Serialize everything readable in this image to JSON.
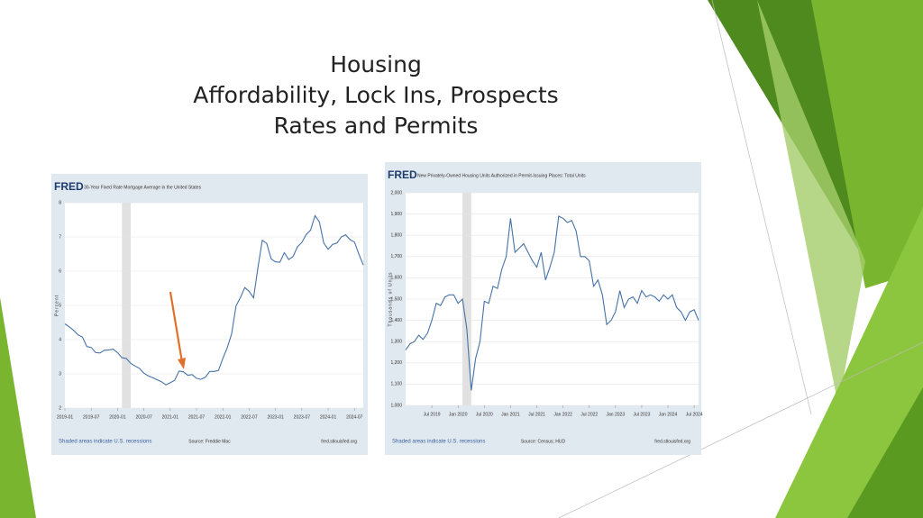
{
  "slide": {
    "title": [
      "Housing",
      "Affordability, Lock Ins, Prospects",
      "Rates and Permits"
    ]
  },
  "chart_data": [
    {
      "type": "line",
      "logo": "FRED",
      "title": "30-Year Fixed Rate Mortgage Average in the United States",
      "y_label": "Percent",
      "x": [
        "2019-01",
        "2019-02",
        "2019-03",
        "2019-04",
        "2019-05",
        "2019-06",
        "2019-07",
        "2019-08",
        "2019-09",
        "2019-10",
        "2019-11",
        "2019-12",
        "2020-01",
        "2020-02",
        "2020-03",
        "2020-04",
        "2020-05",
        "2020-06",
        "2020-07",
        "2020-08",
        "2020-09",
        "2020-10",
        "2020-11",
        "2020-12",
        "2021-01",
        "2021-02",
        "2021-03",
        "2021-04",
        "2021-05",
        "2021-06",
        "2021-07",
        "2021-08",
        "2021-09",
        "2021-10",
        "2021-11",
        "2021-12",
        "2022-01",
        "2022-02",
        "2022-03",
        "2022-04",
        "2022-05",
        "2022-06",
        "2022-07",
        "2022-08",
        "2022-09",
        "2022-10",
        "2022-11",
        "2022-12",
        "2023-01",
        "2023-02",
        "2023-03",
        "2023-04",
        "2023-05",
        "2023-06",
        "2023-07",
        "2023-08",
        "2023-09",
        "2023-10",
        "2023-11",
        "2023-12",
        "2024-01",
        "2024-02",
        "2024-03",
        "2024-04",
        "2024-05",
        "2024-06",
        "2024-07",
        "2024-08",
        "2024-09"
      ],
      "series": [
        {
          "color": "#4572a7",
          "values": [
            4.46,
            4.37,
            4.27,
            4.14,
            4.07,
            3.8,
            3.77,
            3.62,
            3.61,
            3.69,
            3.7,
            3.72,
            3.62,
            3.47,
            3.45,
            3.31,
            3.23,
            3.16,
            3.02,
            2.94,
            2.89,
            2.83,
            2.77,
            2.68,
            2.74,
            2.81,
            3.08,
            3.06,
            2.96,
            2.98,
            2.87,
            2.84,
            2.9,
            3.07,
            3.07,
            3.1,
            3.45,
            3.76,
            4.17,
            4.98,
            5.23,
            5.52,
            5.41,
            5.22,
            6.11,
            6.9,
            6.81,
            6.36,
            6.27,
            6.26,
            6.54,
            6.34,
            6.43,
            6.71,
            6.84,
            7.07,
            7.2,
            7.62,
            7.44,
            6.82,
            6.64,
            6.78,
            6.82,
            7.0,
            7.06,
            6.92,
            6.85,
            6.5,
            6.18
          ]
        }
      ],
      "ylim": [
        2,
        8
      ],
      "yticks": [
        2,
        3,
        4,
        5,
        6,
        7,
        8
      ],
      "xticks": [
        "2019-01",
        "2019-07",
        "2020-01",
        "2020-07",
        "2021-01",
        "2021-07",
        "2022-01",
        "2022-07",
        "2023-01",
        "2023-07",
        "2024-01",
        "2024-07"
      ],
      "recession": [
        "2020-02",
        "2020-04"
      ],
      "grid": true,
      "footer": {
        "note": "Shaded areas indicate U.S. recessions",
        "source": "Source: Freddie Mac",
        "site": "fred.stlouisfed.org"
      }
    },
    {
      "type": "line",
      "logo": "FRED",
      "title": "New Privately-Owned Housing Units Authorized in Permit-Issuing Places: Total Units",
      "y_label": "Thousands of Units",
      "x": [
        "Jan 2019",
        "Feb 2019",
        "Mar 2019",
        "Apr 2019",
        "May 2019",
        "Jun 2019",
        "Jul 2019",
        "Aug 2019",
        "Sep 2019",
        "Oct 2019",
        "Nov 2019",
        "Dec 2019",
        "Jan 2020",
        "Feb 2020",
        "Mar 2020",
        "Apr 2020",
        "May 2020",
        "Jun 2020",
        "Jul 2020",
        "Aug 2020",
        "Sep 2020",
        "Oct 2020",
        "Nov 2020",
        "Dec 2020",
        "Jan 2021",
        "Feb 2021",
        "Mar 2021",
        "Apr 2021",
        "May 2021",
        "Jun 2021",
        "Jul 2021",
        "Aug 2021",
        "Sep 2021",
        "Oct 2021",
        "Nov 2021",
        "Dec 2021",
        "Jan 2022",
        "Feb 2022",
        "Mar 2022",
        "Apr 2022",
        "May 2022",
        "Jun 2022",
        "Jul 2022",
        "Aug 2022",
        "Sep 2022",
        "Oct 2022",
        "Nov 2022",
        "Dec 2022",
        "Jan 2023",
        "Feb 2023",
        "Mar 2023",
        "Apr 2023",
        "May 2023",
        "Jun 2023",
        "Jul 2023",
        "Aug 2023",
        "Sep 2023",
        "Oct 2023",
        "Nov 2023",
        "Dec 2023",
        "Jan 2024",
        "Feb 2024",
        "Mar 2024",
        "Apr 2024",
        "May 2024",
        "Jun 2024",
        "Jul 2024",
        "Aug 2024"
      ],
      "series": [
        {
          "color": "#4572a7",
          "values": [
            1260,
            1290,
            1300,
            1330,
            1310,
            1340,
            1400,
            1480,
            1470,
            1510,
            1520,
            1520,
            1480,
            1500,
            1360,
            1070,
            1220,
            1300,
            1490,
            1480,
            1560,
            1550,
            1640,
            1700,
            1880,
            1720,
            1740,
            1760,
            1720,
            1680,
            1650,
            1720,
            1590,
            1650,
            1720,
            1890,
            1880,
            1860,
            1870,
            1820,
            1700,
            1700,
            1680,
            1560,
            1590,
            1520,
            1380,
            1400,
            1440,
            1540,
            1460,
            1500,
            1510,
            1480,
            1540,
            1510,
            1520,
            1510,
            1490,
            1520,
            1500,
            1520,
            1460,
            1440,
            1400,
            1440,
            1450,
            1400
          ]
        }
      ],
      "ylim": [
        1000,
        2000
      ],
      "yticks": [
        {
          "value": 1000,
          "label": "1,000"
        },
        {
          "value": 1100,
          "label": "1,100"
        },
        {
          "value": 1200,
          "label": "1,200"
        },
        {
          "value": 1300,
          "label": "1,300"
        },
        {
          "value": 1400,
          "label": "1,400"
        },
        {
          "value": 1500,
          "label": "1,500"
        },
        {
          "value": 1600,
          "label": "1,600"
        },
        {
          "value": 1700,
          "label": "1,700"
        },
        {
          "value": 1800,
          "label": "1,800"
        },
        {
          "value": 1900,
          "label": "1,900"
        },
        {
          "value": 2000,
          "label": "2,000"
        }
      ],
      "xticks": [
        "Jul 2019",
        "Jan 2020",
        "Jul 2020",
        "Jan 2021",
        "Jul 2021",
        "Jan 2022",
        "Jul 2022",
        "Jan 2023",
        "Jul 2023",
        "Jan 2024",
        "Jul 2024"
      ],
      "recession": [
        "Feb 2020",
        "Apr 2020"
      ],
      "grid": true,
      "footer": {
        "note": "Shaded areas indicate U.S. recessions",
        "source": "Source: Census; HUD",
        "site": "fred.stlouisfed.org"
      }
    }
  ]
}
